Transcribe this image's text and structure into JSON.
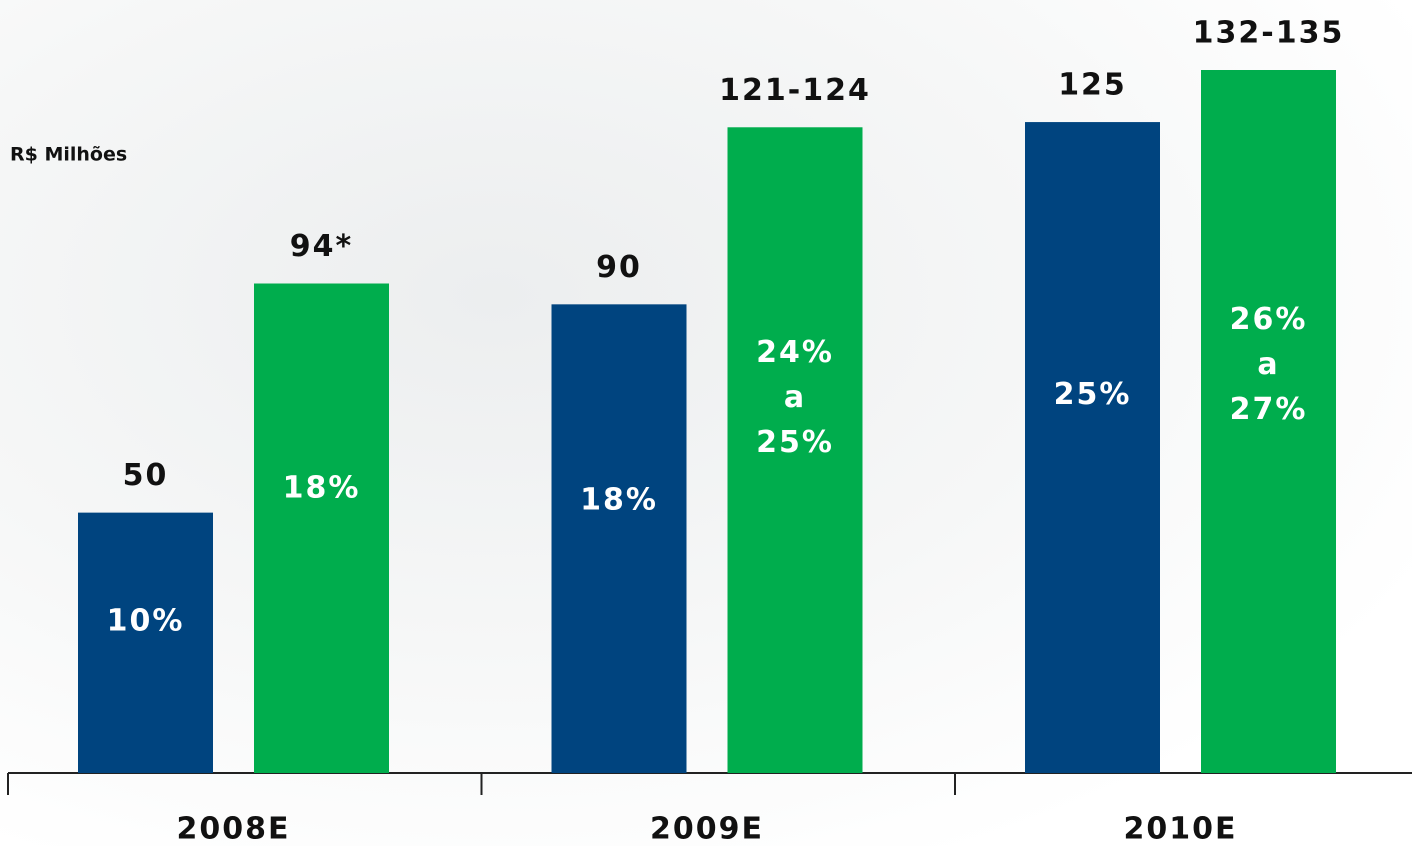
{
  "chart_data": {
    "type": "bar",
    "unit_label": "R$ Milhões",
    "categories": [
      "2008E",
      "2009E",
      "2010E"
    ],
    "series": [
      {
        "color": "#00447f",
        "values": [
          50,
          90,
          125
        ],
        "value_labels": [
          "50",
          "90",
          "125"
        ],
        "inner_labels": [
          [
            "10%"
          ],
          [
            "18%"
          ],
          [
            "25%"
          ]
        ]
      },
      {
        "color": "#00ad4d",
        "values": [
          94,
          124,
          135
        ],
        "value_labels": [
          "94*",
          "121-124",
          "132-135"
        ],
        "inner_labels": [
          [
            "18%"
          ],
          [
            "24%",
            "a",
            "25%"
          ],
          [
            "26%",
            "a",
            "27%"
          ]
        ]
      }
    ]
  }
}
